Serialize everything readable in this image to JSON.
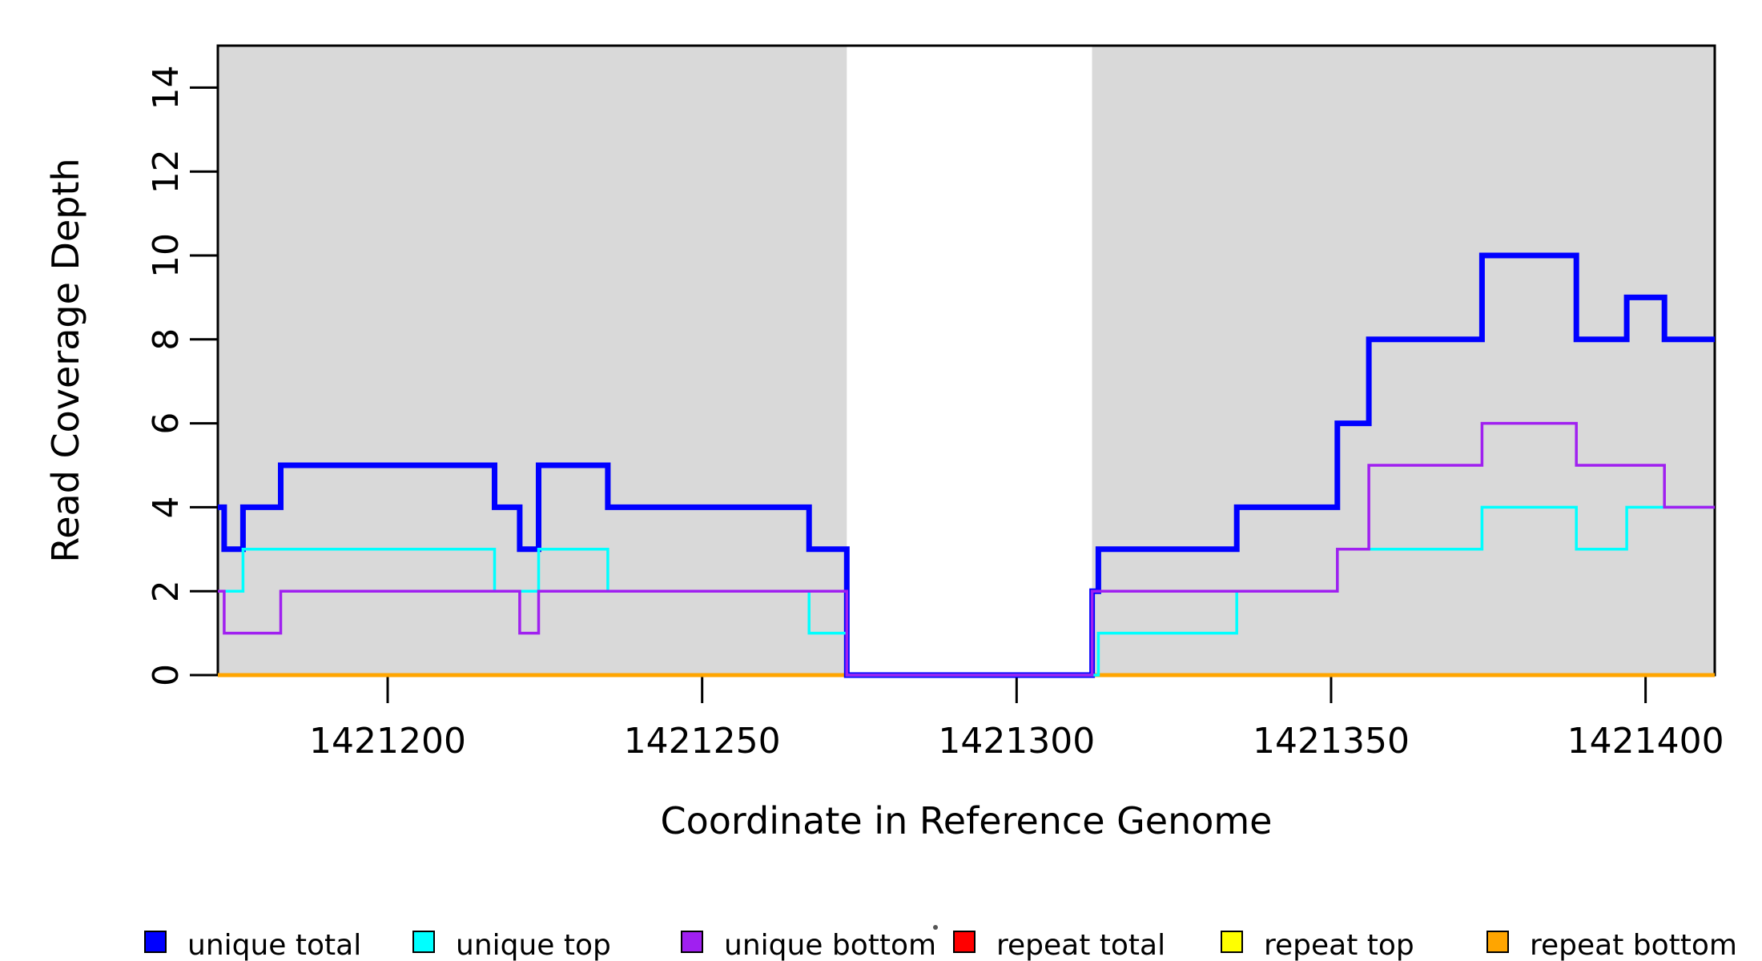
{
  "chart_data": {
    "type": "step-line",
    "title": "",
    "xlabel": "Coordinate in Reference Genome",
    "ylabel": "Read Coverage Depth",
    "xlim": [
      1421173,
      1421411
    ],
    "ylim": [
      0,
      15
    ],
    "grid": false,
    "background_color": "#ffffff",
    "plot_background_color": "#ffffff",
    "shading_color": "#d9d9d9",
    "x_ticks": [
      {
        "v": 1421200,
        "label": "1421200"
      },
      {
        "v": 1421250,
        "label": "1421250"
      },
      {
        "v": 1421300,
        "label": "1421300"
      },
      {
        "v": 1421350,
        "label": "1421350"
      },
      {
        "v": 1421400,
        "label": "1421400"
      }
    ],
    "y_ticks": [
      {
        "v": 0,
        "label": "0"
      },
      {
        "v": 2,
        "label": "2"
      },
      {
        "v": 4,
        "label": "4"
      },
      {
        "v": 6,
        "label": "6"
      },
      {
        "v": 8,
        "label": "8"
      },
      {
        "v": 10,
        "label": "10"
      },
      {
        "v": 12,
        "label": "12"
      },
      {
        "v": 14,
        "label": "14"
      }
    ],
    "shaded_regions": [
      {
        "name": "left-gray-block",
        "x0": 1421173,
        "x1": 1421273
      },
      {
        "name": "right-gray-block",
        "x0": 1421312,
        "x1": 1421411
      }
    ],
    "series": [
      {
        "name": "repeat total",
        "color": "#ff0000",
        "line_width": 3,
        "steps": [
          [
            1421173,
            0
          ]
        ]
      },
      {
        "name": "repeat top",
        "color": "#ffff00",
        "line_width": 3,
        "steps": [
          [
            1421173,
            0
          ]
        ]
      },
      {
        "name": "repeat bottom",
        "color": "#ffa500",
        "line_width": 5,
        "steps": [
          [
            1421173,
            0
          ]
        ]
      },
      {
        "name": "unique total",
        "color": "#0000ff",
        "line_width": 7,
        "steps": [
          [
            1421173,
            4
          ],
          [
            1421174,
            3
          ],
          [
            1421177,
            4
          ],
          [
            1421183,
            5
          ],
          [
            1421217,
            4
          ],
          [
            1421221,
            3
          ],
          [
            1421224,
            5
          ],
          [
            1421235,
            4
          ],
          [
            1421267,
            3
          ],
          [
            1421273,
            0
          ],
          [
            1421312,
            2
          ],
          [
            1421313,
            3
          ],
          [
            1421335,
            4
          ],
          [
            1421351,
            6
          ],
          [
            1421356,
            8
          ],
          [
            1421374,
            10
          ],
          [
            1421389,
            8
          ],
          [
            1421397,
            9
          ],
          [
            1421403,
            8
          ]
        ]
      },
      {
        "name": "unique top",
        "color": "#00ffff",
        "line_width": 3.5,
        "steps": [
          [
            1421173,
            2
          ],
          [
            1421177,
            3
          ],
          [
            1421217,
            2
          ],
          [
            1421224,
            3
          ],
          [
            1421235,
            2
          ],
          [
            1421267,
            1
          ],
          [
            1421273,
            0
          ],
          [
            1421313,
            1
          ],
          [
            1421335,
            2
          ],
          [
            1421351,
            3
          ],
          [
            1421374,
            4
          ],
          [
            1421389,
            3
          ],
          [
            1421397,
            4
          ]
        ]
      },
      {
        "name": "unique bottom",
        "color": "#a020f0",
        "line_width": 3.5,
        "steps": [
          [
            1421173,
            2
          ],
          [
            1421174,
            1
          ],
          [
            1421183,
            2
          ],
          [
            1421221,
            1
          ],
          [
            1421224,
            2
          ],
          [
            1421273,
            0
          ],
          [
            1421312,
            2
          ],
          [
            1421351,
            3
          ],
          [
            1421356,
            5
          ],
          [
            1421374,
            6
          ],
          [
            1421389,
            5
          ],
          [
            1421403,
            4
          ]
        ]
      }
    ],
    "legend": {
      "position": "bottom",
      "items": [
        {
          "label": "unique total",
          "color": "#0000ff"
        },
        {
          "label": "unique top",
          "color": "#00ffff"
        },
        {
          "label": "unique bottom",
          "color": "#a020f0"
        },
        {
          "label": "repeat total",
          "color": "#ff0000"
        },
        {
          "label": "repeat top",
          "color": "#ffff00"
        },
        {
          "label": "repeat bottom",
          "color": "#ffa500"
        }
      ]
    }
  }
}
